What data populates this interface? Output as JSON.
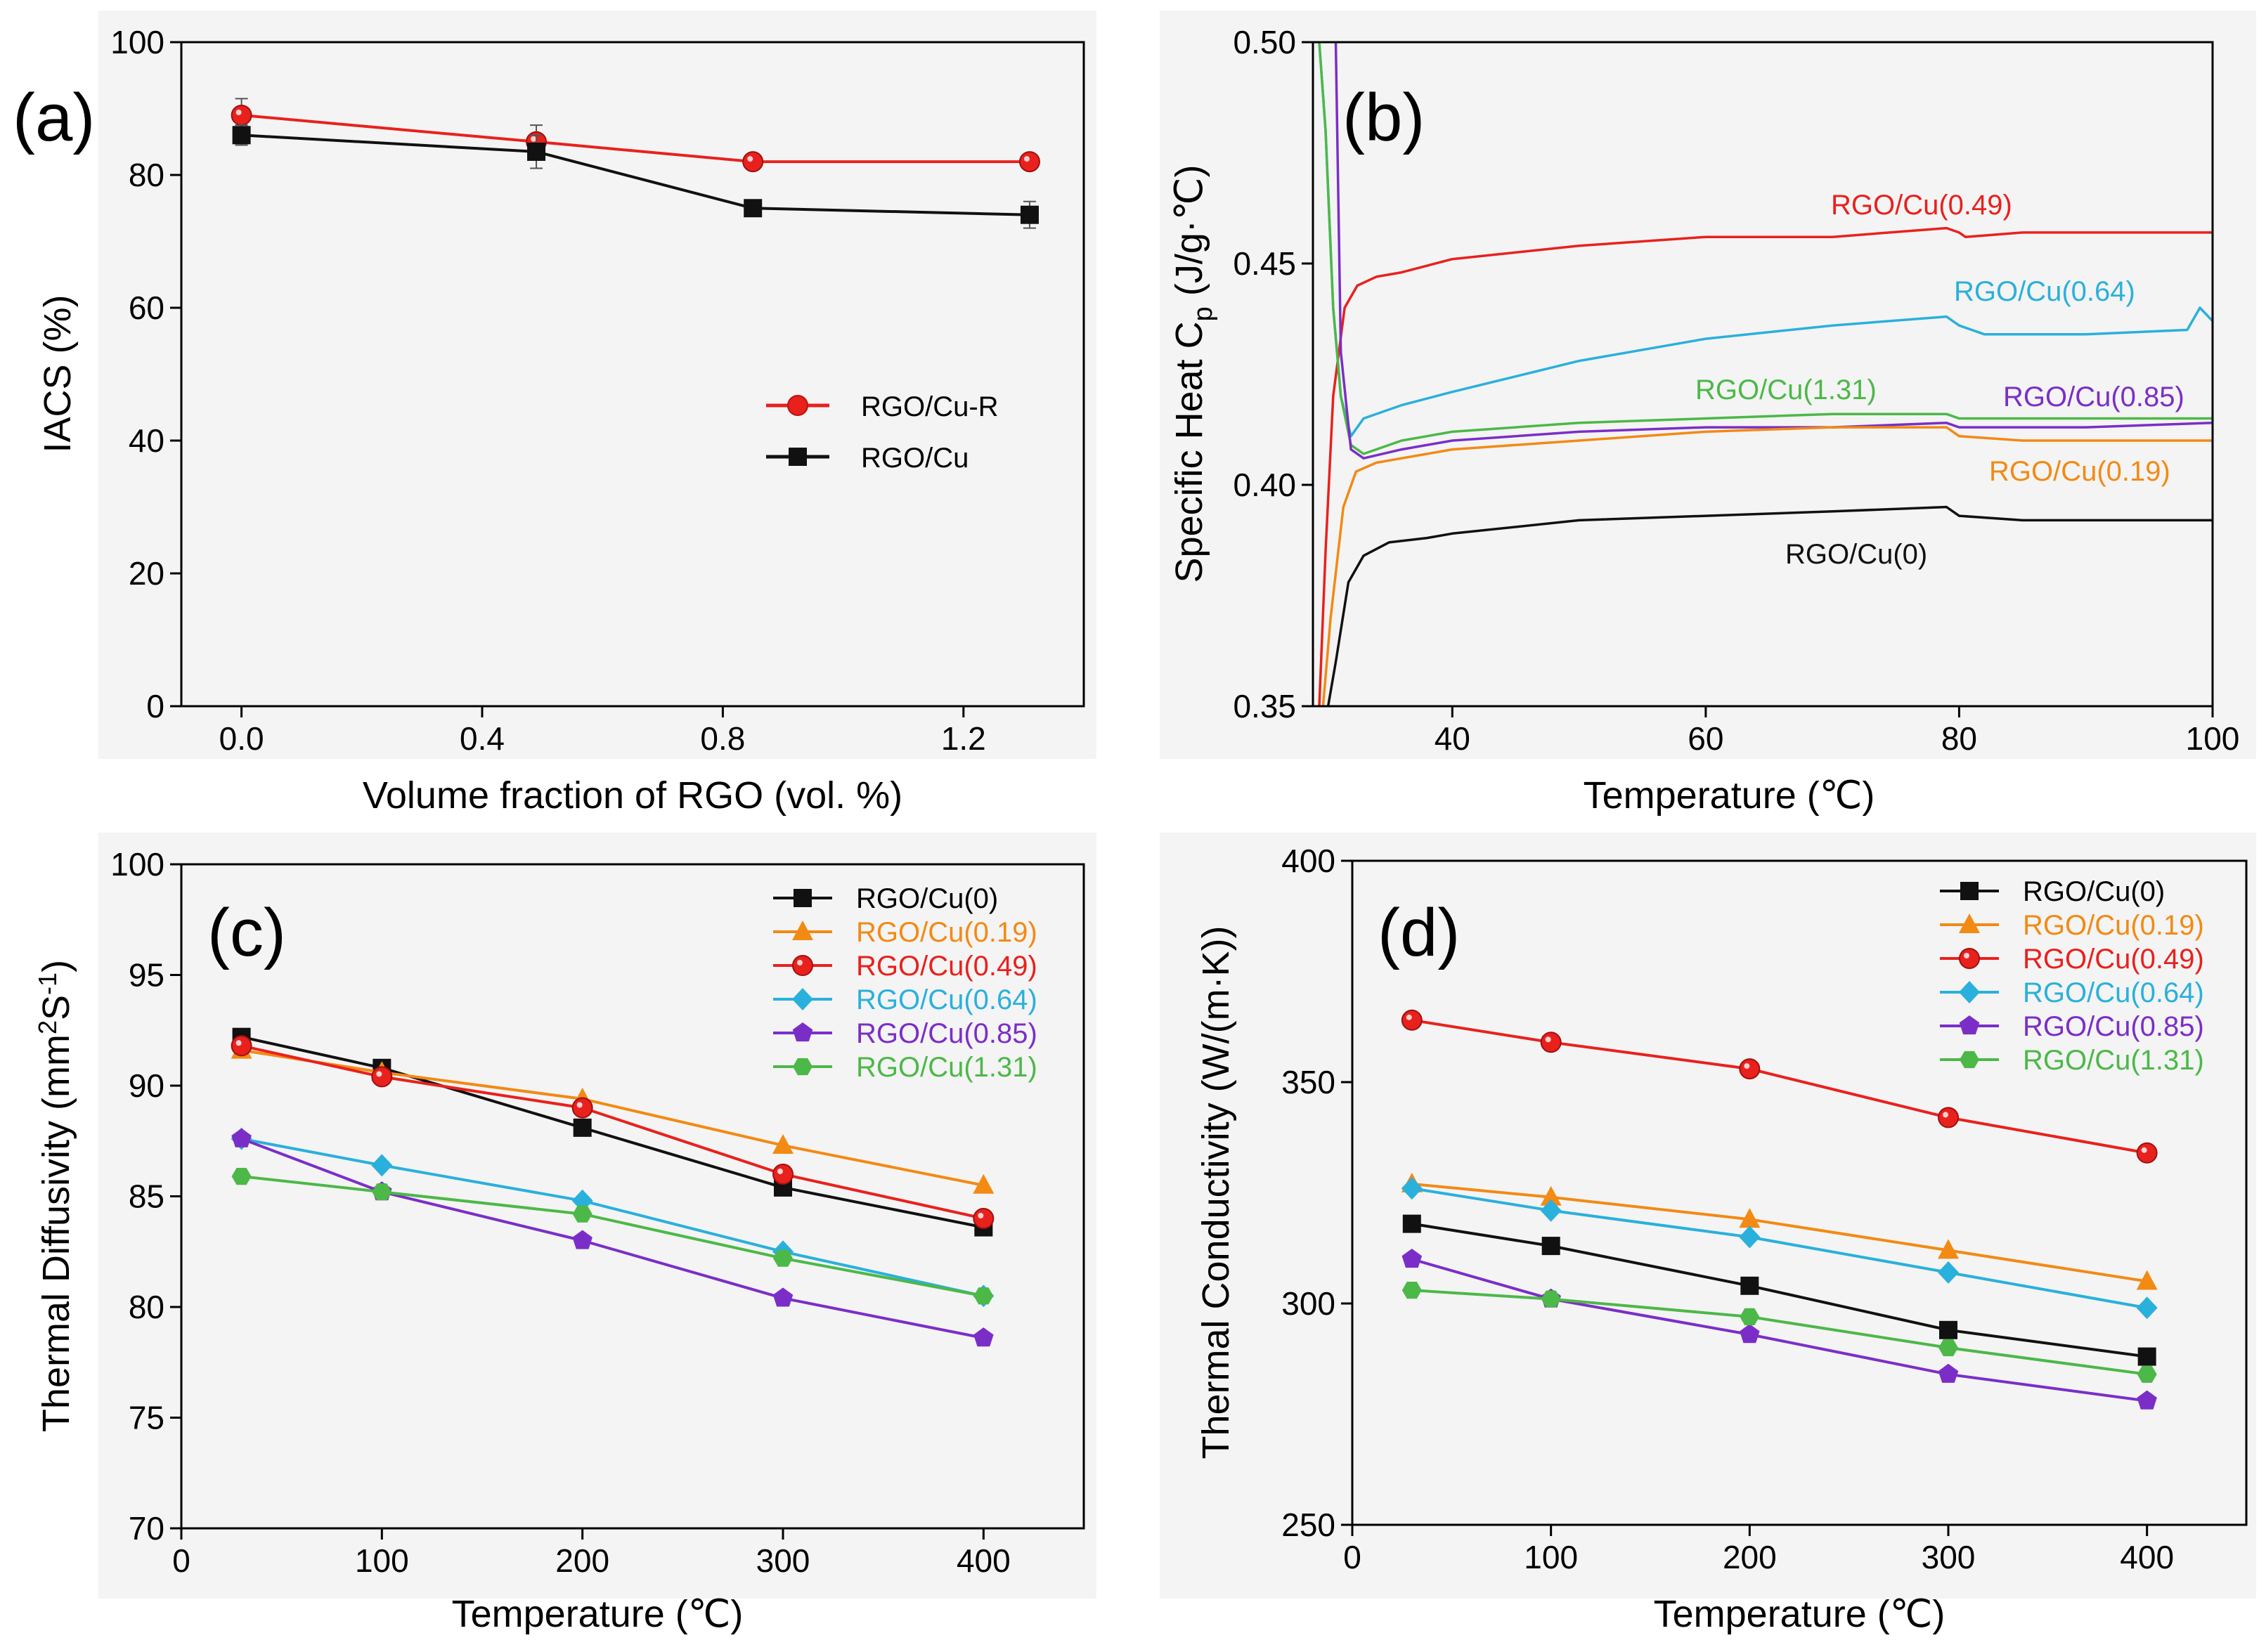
{
  "chart_data": [
    {
      "id": "a",
      "panel_label": "(a)",
      "type": "line",
      "xlabel": "Volume fraction of RGO (vol. %)",
      "ylabel": "IACS (%)",
      "xlim": [
        -0.1,
        1.4
      ],
      "ylim": [
        0,
        100
      ],
      "xticks": [
        0.0,
        0.4,
        0.8,
        1.2
      ],
      "xtick_labels": [
        "0.0",
        "0.4",
        "0.8",
        "1.2"
      ],
      "yticks": [
        0,
        20,
        40,
        60,
        80,
        100
      ],
      "ytick_labels": [
        "0",
        "20",
        "40",
        "60",
        "80",
        "100"
      ],
      "legend_position": "center-right",
      "series": [
        {
          "name": "RGO/Cu-R",
          "color": "#e8211d",
          "marker": "circle",
          "x": [
            0.0,
            0.49,
            0.85,
            1.31
          ],
          "y": [
            89,
            85,
            82,
            82
          ],
          "err": [
            2.5,
            2.5,
            1,
            1
          ]
        },
        {
          "name": "RGO/Cu",
          "color": "#111111",
          "marker": "square",
          "x": [
            0.0,
            0.49,
            0.85,
            1.31
          ],
          "y": [
            86,
            83.5,
            75,
            74
          ],
          "err": [
            1.5,
            2.5,
            1,
            2
          ]
        }
      ]
    },
    {
      "id": "b",
      "panel_label": "(b)",
      "type": "line",
      "xlabel": "Temperature (℃)",
      "ylabel_prefix": "Specific Heat C",
      "ylabel_sub": "p",
      "ylabel_suffix": " (J/g·℃)",
      "xlim": [
        29,
        100
      ],
      "ylim": [
        0.35,
        0.5
      ],
      "xticks": [
        40,
        60,
        80,
        100
      ],
      "xtick_labels": [
        "40",
        "60",
        "80",
        "100"
      ],
      "yticks": [
        0.35,
        0.4,
        0.45,
        0.5
      ],
      "ytick_labels": [
        "0.35",
        "0.40",
        "0.45",
        "0.50"
      ],
      "series": [
        {
          "name": "RGO/Cu(0.49)",
          "label": "RGO/Cu(0.49)",
          "color": "#e8211d",
          "x": [
            29.5,
            30,
            30.6,
            31.5,
            32.5,
            34,
            36,
            40,
            50,
            60,
            70,
            79,
            80,
            80.5,
            85,
            90,
            100
          ],
          "y": [
            0.35,
            0.385,
            0.42,
            0.44,
            0.445,
            0.447,
            0.448,
            0.451,
            0.454,
            0.456,
            0.456,
            0.458,
            0.457,
            0.456,
            0.457,
            0.457,
            0.457
          ]
        },
        {
          "name": "RGO/Cu(0.64)",
          "label": "RGO/Cu(0.64)",
          "color": "#2ab0dc",
          "x": [
            29.5,
            30,
            30.6,
            31.2,
            32,
            33,
            36,
            40,
            50,
            60,
            70,
            79,
            80,
            82,
            90,
            98,
            99,
            100
          ],
          "y": [
            0.5,
            0.48,
            0.44,
            0.42,
            0.411,
            0.415,
            0.418,
            0.421,
            0.428,
            0.433,
            0.436,
            0.438,
            0.436,
            0.434,
            0.434,
            0.435,
            0.44,
            0.437
          ]
        },
        {
          "name": "RGO/Cu(1.31)",
          "label": "RGO/Cu(1.31)",
          "color": "#4cb848",
          "x": [
            29.5,
            30,
            30.6,
            31.2,
            32,
            33,
            36,
            40,
            50,
            60,
            70,
            79,
            80,
            85,
            90,
            100
          ],
          "y": [
            0.5,
            0.48,
            0.44,
            0.42,
            0.409,
            0.407,
            0.41,
            0.412,
            0.414,
            0.415,
            0.416,
            0.416,
            0.415,
            0.415,
            0.415,
            0.415
          ]
        },
        {
          "name": "RGO/Cu(0.85)",
          "label": "RGO/Cu(0.85)",
          "color": "#7b2ec7",
          "x": [
            30.8,
            31.2,
            32,
            33,
            36,
            40,
            50,
            60,
            70,
            79,
            80,
            85,
            90,
            100
          ],
          "y": [
            0.5,
            0.43,
            0.408,
            0.406,
            0.408,
            0.41,
            0.412,
            0.413,
            0.413,
            0.414,
            0.413,
            0.413,
            0.413,
            0.414
          ]
        },
        {
          "name": "RGO/Cu(0.19)",
          "label": "RGO/Cu(0.19)",
          "color": "#f28a14",
          "x": [
            29.8,
            30.4,
            31.4,
            32.4,
            34,
            36,
            40,
            50,
            60,
            70,
            79,
            80,
            85,
            90,
            100
          ],
          "y": [
            0.35,
            0.37,
            0.395,
            0.403,
            0.405,
            0.406,
            0.408,
            0.41,
            0.412,
            0.413,
            0.413,
            0.411,
            0.41,
            0.41,
            0.41
          ]
        },
        {
          "name": "RGO/Cu(0)",
          "label": "RGO/Cu(0)",
          "color": "#111111",
          "x": [
            30.2,
            30.8,
            31.8,
            33,
            35,
            38,
            40,
            50,
            60,
            70,
            79,
            80,
            85,
            90,
            100
          ],
          "y": [
            0.35,
            0.36,
            0.378,
            0.384,
            0.387,
            0.388,
            0.389,
            0.392,
            0.393,
            0.394,
            0.395,
            0.393,
            0.392,
            0.392,
            0.392
          ]
        }
      ]
    },
    {
      "id": "c",
      "panel_label": "(c)",
      "type": "line",
      "xlabel": "Temperature (℃)",
      "ylabel_prefix": "Thermal Diffusivity (mm",
      "ylabel_sup1": "2",
      "ylabel_mid": "S",
      "ylabel_sup2": "-1",
      "ylabel_suffix": ")",
      "xlim": [
        0,
        450
      ],
      "ylim": [
        70,
        100
      ],
      "xticks": [
        0,
        100,
        200,
        300,
        400
      ],
      "xtick_labels": [
        "0",
        "100",
        "200",
        "300",
        "400"
      ],
      "yticks": [
        70,
        75,
        80,
        85,
        90,
        95,
        100
      ],
      "ytick_labels": [
        "70",
        "75",
        "80",
        "85",
        "90",
        "95",
        "100"
      ],
      "legend_position": "top-right",
      "series": [
        {
          "name": "RGO/Cu(0)",
          "color": "#111111",
          "marker": "square",
          "x": [
            30,
            100,
            200,
            300,
            400
          ],
          "y": [
            92.2,
            90.8,
            88.1,
            85.4,
            83.6
          ]
        },
        {
          "name": "RGO/Cu(0.19)",
          "color": "#f28a14",
          "marker": "triangle",
          "x": [
            30,
            100,
            200,
            300,
            400
          ],
          "y": [
            91.6,
            90.6,
            89.4,
            87.3,
            85.5
          ]
        },
        {
          "name": "RGO/Cu(0.49)",
          "color": "#e8211d",
          "marker": "circle",
          "x": [
            30,
            100,
            200,
            300,
            400
          ],
          "y": [
            91.8,
            90.4,
            89.0,
            86.0,
            84.0
          ]
        },
        {
          "name": "RGO/Cu(0.64)",
          "color": "#2ab0dc",
          "marker": "diamond",
          "x": [
            30,
            100,
            200,
            300,
            400
          ],
          "y": [
            87.6,
            86.4,
            84.8,
            82.5,
            80.5
          ]
        },
        {
          "name": "RGO/Cu(0.85)",
          "color": "#7b2ec7",
          "marker": "pentagon",
          "x": [
            30,
            100,
            200,
            300,
            400
          ],
          "y": [
            87.6,
            85.2,
            83.0,
            80.4,
            78.6
          ]
        },
        {
          "name": "RGO/Cu(1.31)",
          "color": "#4cb848",
          "marker": "hexagon",
          "x": [
            30,
            100,
            200,
            300,
            400
          ],
          "y": [
            85.9,
            85.2,
            84.2,
            82.2,
            80.5
          ]
        }
      ]
    },
    {
      "id": "d",
      "panel_label": "(d)",
      "type": "line",
      "xlabel": "Temperature (℃)",
      "ylabel": "Thermal Conductivity (W/(m·K))",
      "xlim": [
        0,
        450
      ],
      "ylim": [
        250,
        400
      ],
      "xticks": [
        0,
        100,
        200,
        300,
        400
      ],
      "xtick_labels": [
        "0",
        "100",
        "200",
        "300",
        "400"
      ],
      "yticks": [
        250,
        300,
        350,
        400
      ],
      "ytick_labels": [
        "250",
        "300",
        "350",
        "400"
      ],
      "legend_position": "top-right",
      "series": [
        {
          "name": "RGO/Cu(0)",
          "color": "#111111",
          "marker": "square",
          "x": [
            30,
            100,
            200,
            300,
            400
          ],
          "y": [
            318,
            313,
            304,
            294,
            288
          ]
        },
        {
          "name": "RGO/Cu(0.19)",
          "color": "#f28a14",
          "marker": "triangle",
          "x": [
            30,
            100,
            200,
            300,
            400
          ],
          "y": [
            327,
            324,
            319,
            312,
            305
          ]
        },
        {
          "name": "RGO/Cu(0.49)",
          "color": "#e8211d",
          "marker": "circle",
          "x": [
            30,
            100,
            200,
            300,
            400
          ],
          "y": [
            364,
            359,
            353,
            342,
            334
          ]
        },
        {
          "name": "RGO/Cu(0.64)",
          "color": "#2ab0dc",
          "marker": "diamond",
          "x": [
            30,
            100,
            200,
            300,
            400
          ],
          "y": [
            326,
            321,
            315,
            307,
            299
          ]
        },
        {
          "name": "RGO/Cu(0.85)",
          "color": "#7b2ec7",
          "marker": "pentagon",
          "x": [
            30,
            100,
            200,
            300,
            400
          ],
          "y": [
            310,
            301,
            293,
            284,
            278
          ]
        },
        {
          "name": "RGO/Cu(1.31)",
          "color": "#4cb848",
          "marker": "hexagon",
          "x": [
            30,
            100,
            200,
            300,
            400
          ],
          "y": [
            303,
            301,
            297,
            290,
            284
          ]
        }
      ]
    }
  ]
}
